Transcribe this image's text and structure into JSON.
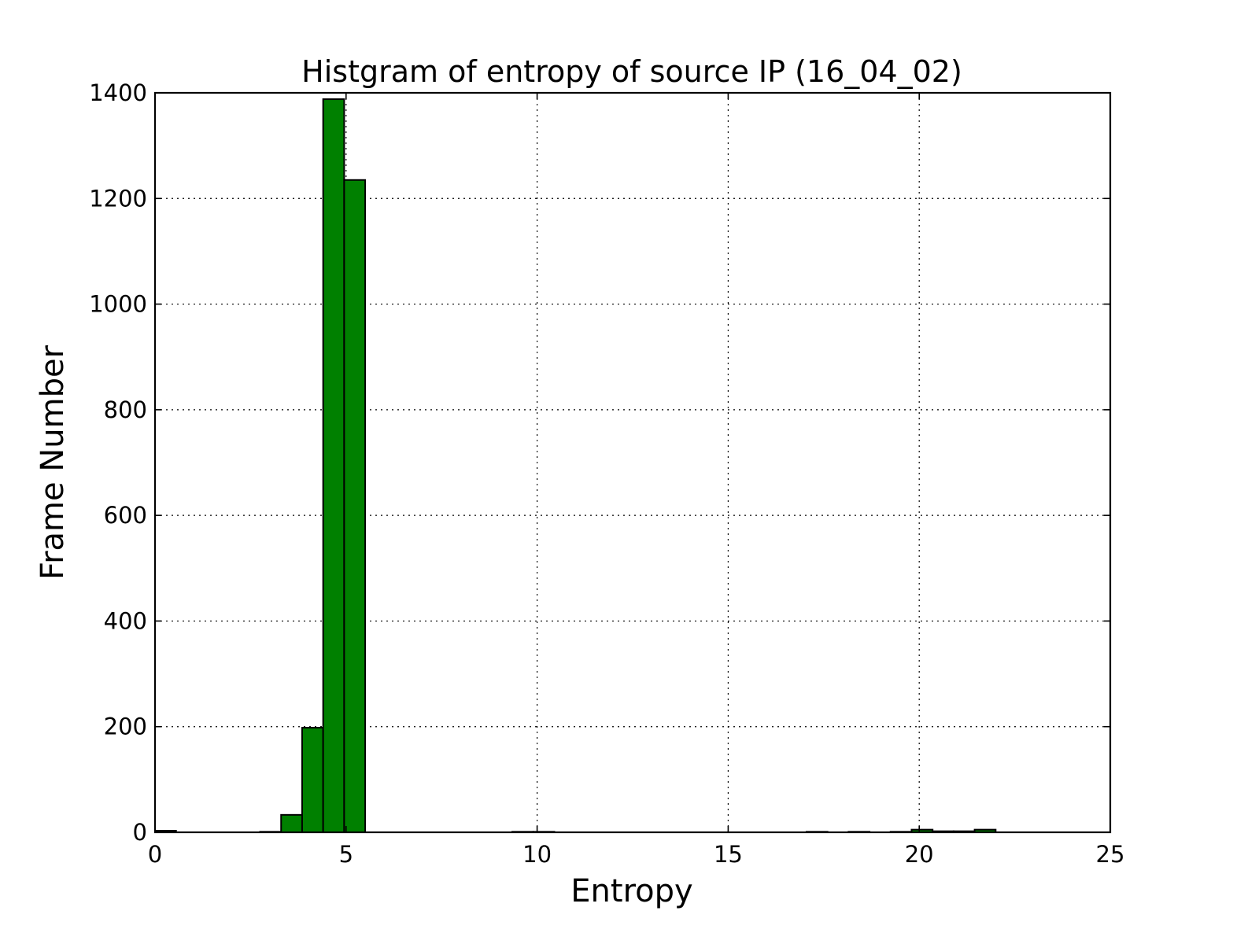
{
  "chart_data": {
    "type": "bar",
    "title": "Histgram of entropy of source IP (16_04_02)",
    "xlabel": "Entropy",
    "ylabel": "Frame Number",
    "xlim": [
      0,
      25
    ],
    "ylim": [
      0,
      1400
    ],
    "xticks": [
      0,
      5,
      10,
      15,
      20,
      25
    ],
    "yticks": [
      0,
      200,
      400,
      600,
      800,
      1000,
      1200,
      1400
    ],
    "grid": true,
    "bar_color": "#008000",
    "bin_width": 0.55,
    "bins": [
      {
        "x": 0.0,
        "value": 3
      },
      {
        "x": 2.75,
        "value": 1
      },
      {
        "x": 3.3,
        "value": 33
      },
      {
        "x": 3.85,
        "value": 198
      },
      {
        "x": 4.4,
        "value": 1388
      },
      {
        "x": 4.95,
        "value": 1235
      },
      {
        "x": 9.35,
        "value": 1
      },
      {
        "x": 9.9,
        "value": 1
      },
      {
        "x": 17.05,
        "value": 1
      },
      {
        "x": 18.15,
        "value": 1
      },
      {
        "x": 19.25,
        "value": 1
      },
      {
        "x": 19.8,
        "value": 5
      },
      {
        "x": 20.35,
        "value": 2
      },
      {
        "x": 20.9,
        "value": 2
      },
      {
        "x": 21.45,
        "value": 5
      }
    ]
  }
}
